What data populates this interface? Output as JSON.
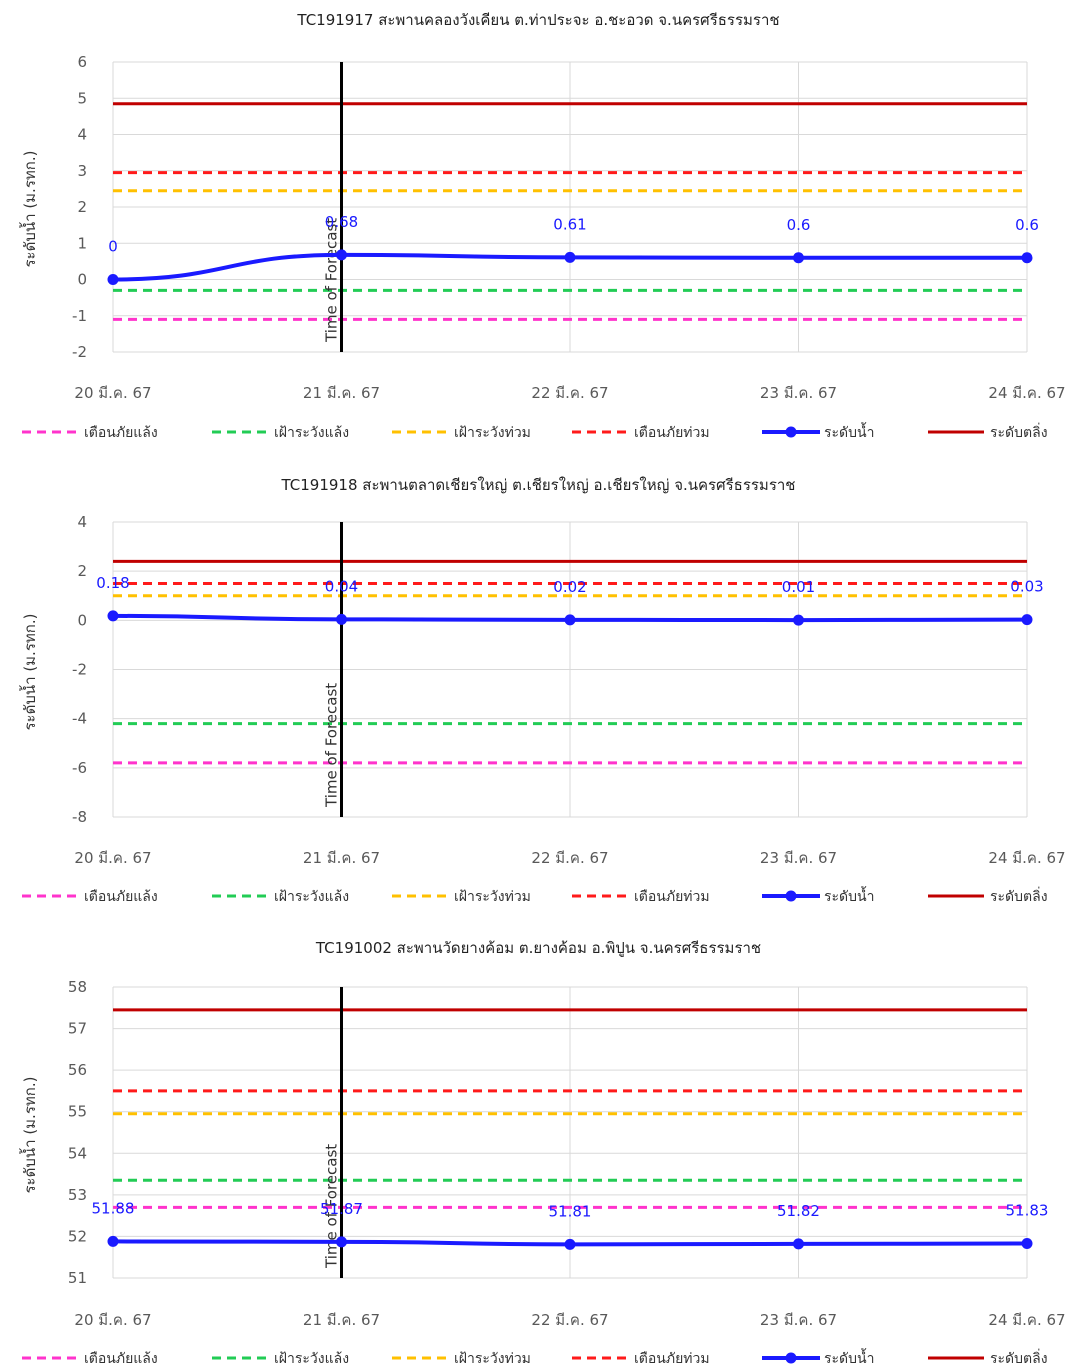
{
  "chart_data": [
    {
      "type": "line",
      "title": "TC191917 สะพานคลองวังเคียน ต.ท่าประจะ อ.ชะอวด จ.นครศรีธรรมราช",
      "ylabel": "ระดับน้ำ (ม.รทก.)",
      "xlabel": "",
      "ylim": [
        -2,
        6
      ],
      "yticks": [
        -2,
        -1,
        0,
        1,
        2,
        3,
        4,
        5,
        6
      ],
      "categories": [
        "20 มี.ค. 67",
        "21 มี.ค. 67",
        "22 มี.ค. 67",
        "23 มี.ค. 67",
        "24 มี.ค. 67"
      ],
      "forecast_label": "Time of Forecast",
      "forecast_index": 1,
      "water_level": {
        "name": "ระดับน้ำ",
        "color": "#1a1aff",
        "values": [
          0,
          0.68,
          0.61,
          0.6,
          0.6
        ],
        "labels": [
          "0",
          "0.68",
          "0.61",
          "0.6",
          "0.6"
        ]
      },
      "thresholds": [
        {
          "name": "เตือนภัยแล้ง",
          "value": -1.1,
          "color": "#ff33cc",
          "dashed": true
        },
        {
          "name": "เฝ้าระวังแล้ง",
          "value": -0.3,
          "color": "#22cc55",
          "dashed": true
        },
        {
          "name": "เฝ้าระวังท่วม",
          "value": 2.45,
          "color": "#ffc000",
          "dashed": true
        },
        {
          "name": "เตือนภัยท่วม",
          "value": 2.95,
          "color": "#ff1a1a",
          "dashed": true
        },
        {
          "name": "ระดับตลิ่ง",
          "value": 4.85,
          "color": "#c00000",
          "dashed": false
        }
      ],
      "legend": [
        "เตือนภัยแล้ง",
        "เฝ้าระวังแล้ง",
        "เฝ้าระวังท่วม",
        "เตือนภัยท่วม",
        "ระดับน้ำ",
        "ระดับตลิ่ง"
      ],
      "legend_position": "bottom",
      "grid": true
    },
    {
      "type": "line",
      "title": "TC191918 สะพานตลาดเชียรใหญ่ ต.เชียรใหญ่ อ.เชียรใหญ่ จ.นครศรีธรรมราช",
      "ylabel": "ระดับน้ำ (ม.รทก.)",
      "xlabel": "",
      "ylim": [
        -8,
        4
      ],
      "yticks": [
        -8,
        -6,
        -4,
        -2,
        0,
        2,
        4
      ],
      "categories": [
        "20 มี.ค. 67",
        "21 มี.ค. 67",
        "22 มี.ค. 67",
        "23 มี.ค. 67",
        "24 มี.ค. 67"
      ],
      "forecast_label": "Time of Forecast",
      "forecast_index": 1,
      "water_level": {
        "name": "ระดับน้ำ",
        "color": "#1a1aff",
        "values": [
          0.18,
          0.04,
          0.02,
          0.01,
          0.03
        ],
        "labels": [
          "0.18",
          "0.04",
          "0.02",
          "0.01",
          "0.03"
        ]
      },
      "thresholds": [
        {
          "name": "เตือนภัยแล้ง",
          "value": -5.8,
          "color": "#ff33cc",
          "dashed": true
        },
        {
          "name": "เฝ้าระวังแล้ง",
          "value": -4.2,
          "color": "#22cc55",
          "dashed": true
        },
        {
          "name": "เฝ้าระวังท่วม",
          "value": 1.0,
          "color": "#ffc000",
          "dashed": true
        },
        {
          "name": "เตือนภัยท่วม",
          "value": 1.5,
          "color": "#ff1a1a",
          "dashed": true
        },
        {
          "name": "ระดับตลิ่ง",
          "value": 2.4,
          "color": "#c00000",
          "dashed": false
        }
      ],
      "legend": [
        "เตือนภัยแล้ง",
        "เฝ้าระวังแล้ง",
        "เฝ้าระวังท่วม",
        "เตือนภัยท่วม",
        "ระดับน้ำ",
        "ระดับตลิ่ง"
      ],
      "legend_position": "bottom",
      "grid": true
    },
    {
      "type": "line",
      "title": "TC191002 สะพานวัดยางค้อม ต.ยางค้อม อ.พิปูน จ.นครศรีธรรมราช",
      "ylabel": "ระดับน้ำ (ม.รทก.)",
      "xlabel": "",
      "ylim": [
        51,
        58
      ],
      "yticks": [
        51,
        52,
        53,
        54,
        55,
        56,
        57,
        58
      ],
      "categories": [
        "20 มี.ค. 67",
        "21 มี.ค. 67",
        "22 มี.ค. 67",
        "23 มี.ค. 67",
        "24 มี.ค. 67"
      ],
      "forecast_label": "Time of Forecast",
      "forecast_index": 1,
      "water_level": {
        "name": "ระดับน้ำ",
        "color": "#1a1aff",
        "values": [
          51.88,
          51.87,
          51.81,
          51.82,
          51.83
        ],
        "labels": [
          "51.88",
          "51.87",
          "51.81",
          "51.82",
          "51.83"
        ]
      },
      "thresholds": [
        {
          "name": "เตือนภัยแล้ง",
          "value": 52.7,
          "color": "#ff33cc",
          "dashed": true
        },
        {
          "name": "เฝ้าระวังแล้ง",
          "value": 53.35,
          "color": "#22cc55",
          "dashed": true
        },
        {
          "name": "เฝ้าระวังท่วม",
          "value": 54.95,
          "color": "#ffc000",
          "dashed": true
        },
        {
          "name": "เตือนภัยท่วม",
          "value": 55.5,
          "color": "#ff1a1a",
          "dashed": true
        },
        {
          "name": "ระดับตลิ่ง",
          "value": 57.45,
          "color": "#c00000",
          "dashed": false
        }
      ],
      "legend": [
        "เตือนภัยแล้ง",
        "เฝ้าระวังแล้ง",
        "เฝ้าระวังท่วม",
        "เตือนภัยท่วม",
        "ระดับน้ำ",
        "ระดับตลิ่ง"
      ],
      "legend_position": "bottom",
      "grid": true
    }
  ]
}
